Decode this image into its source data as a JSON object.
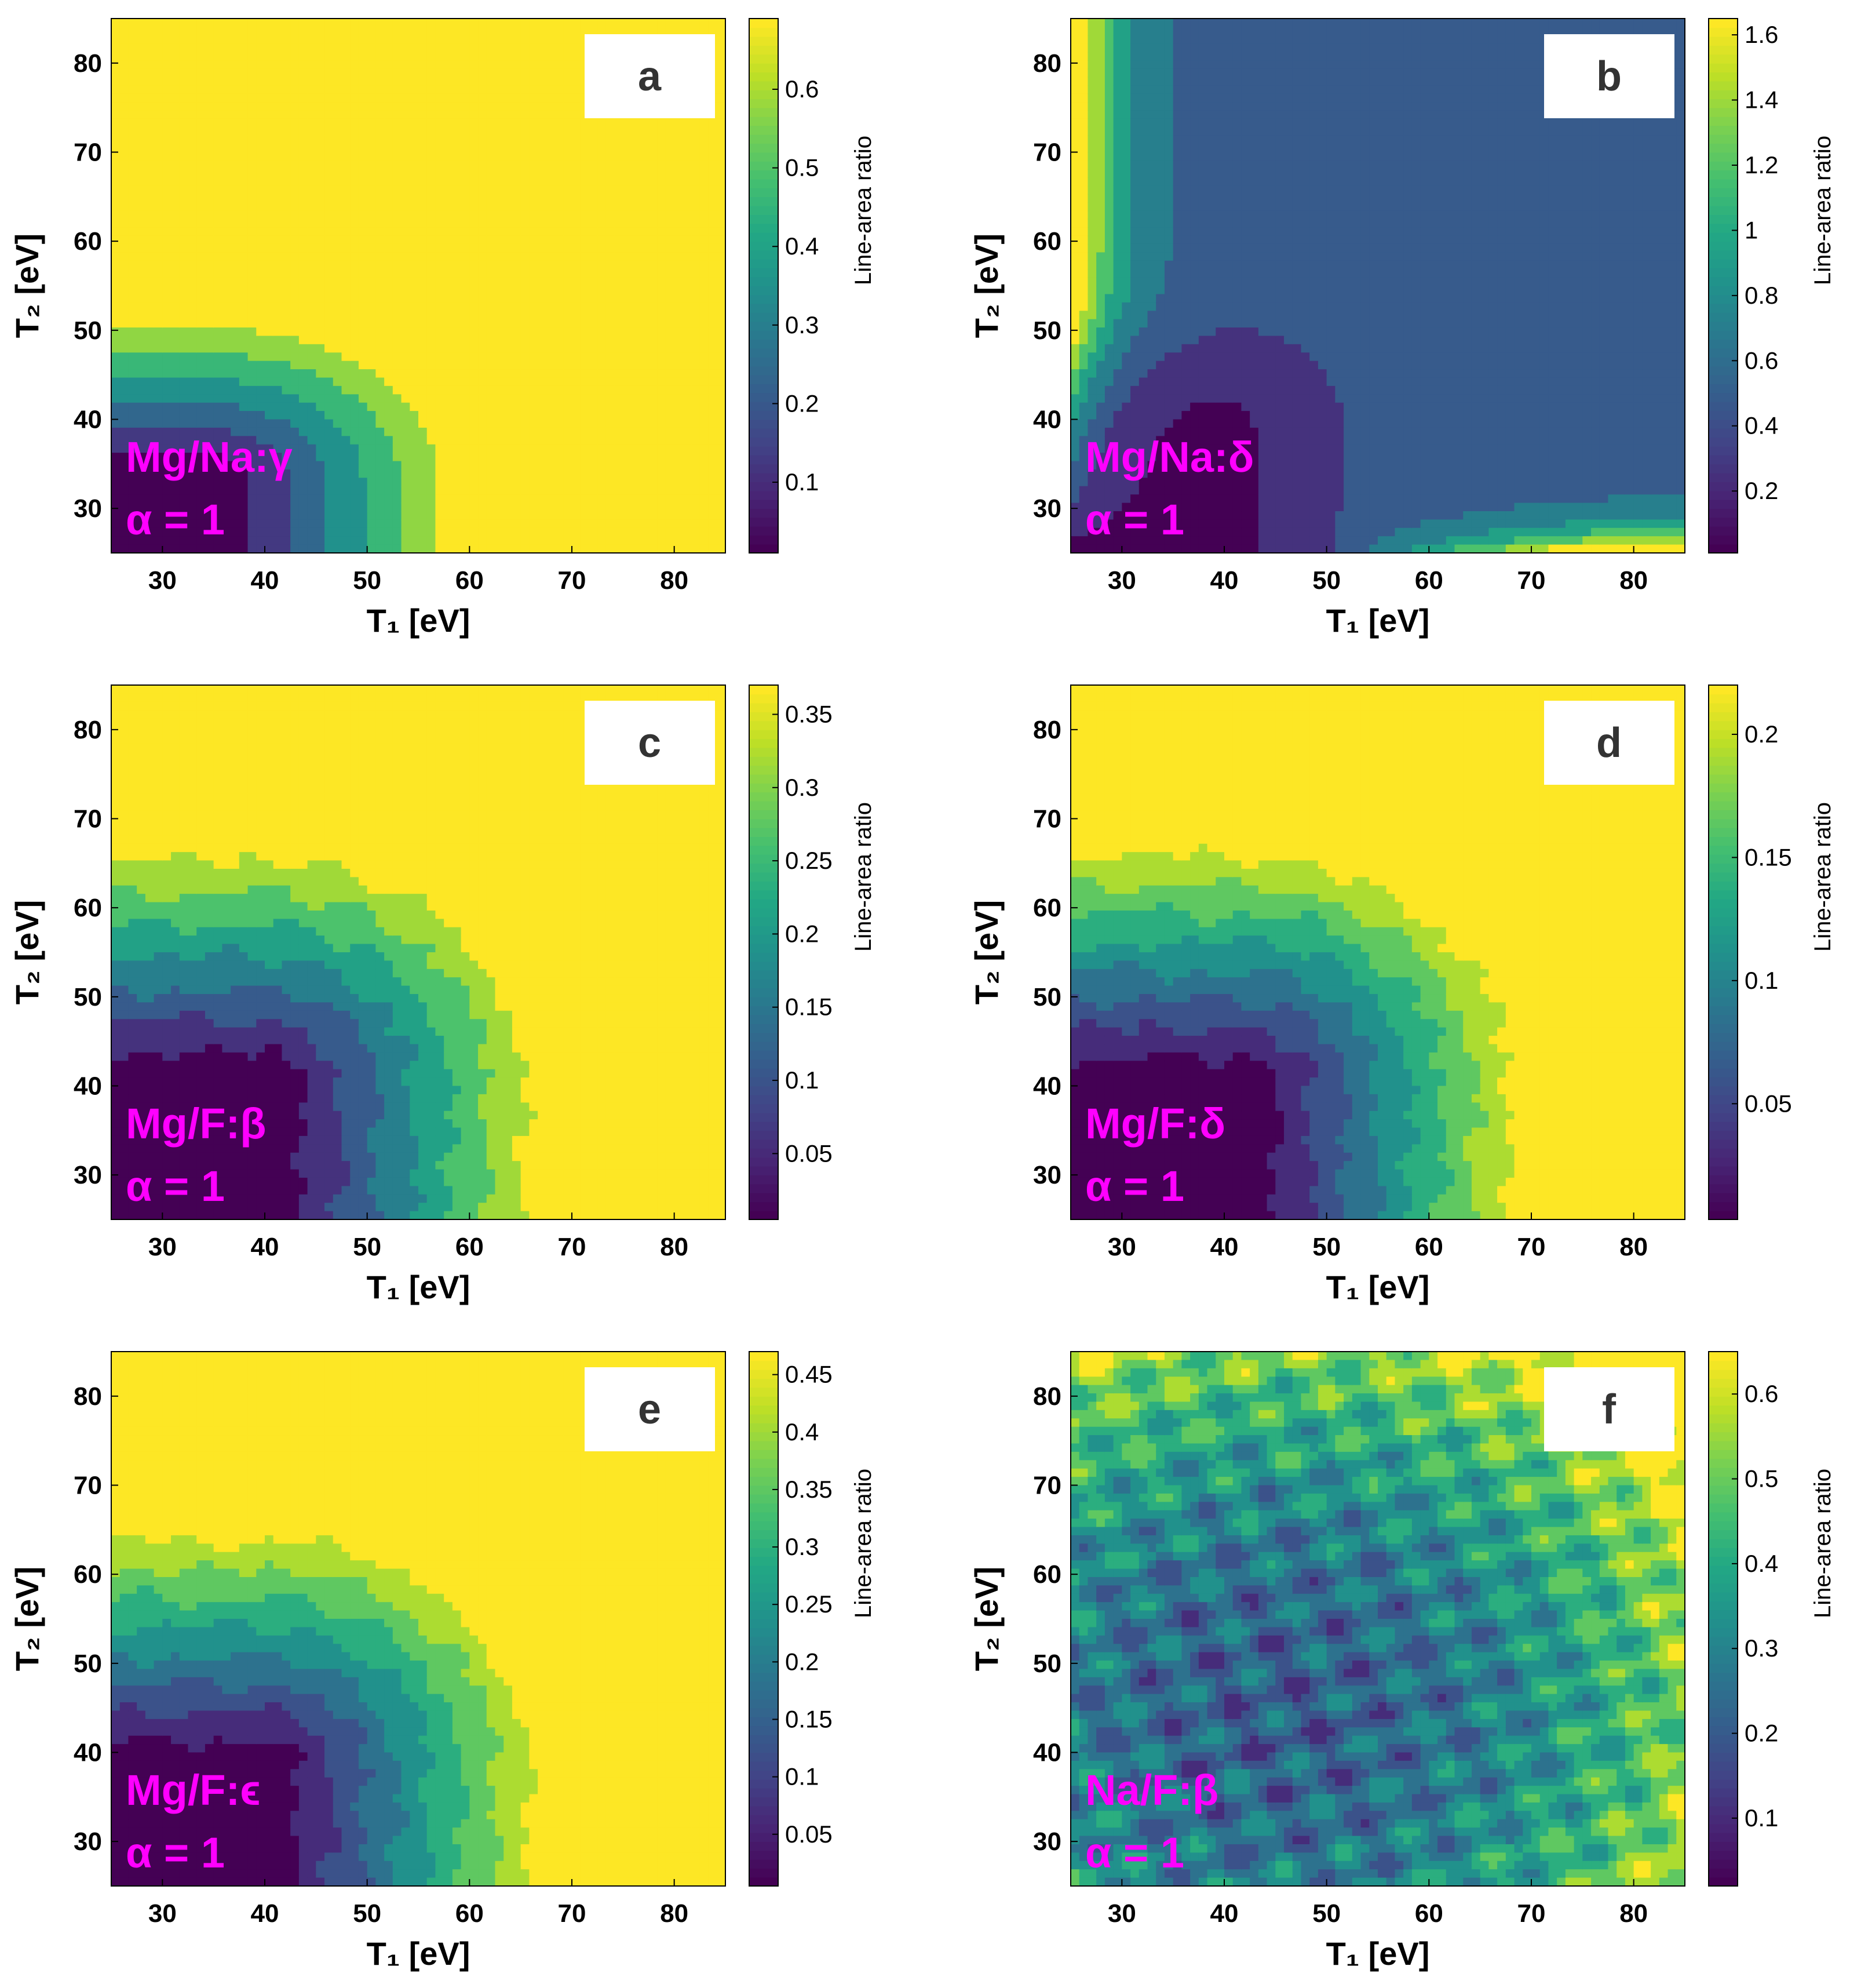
{
  "chart_data": [
    {
      "type": "heatmap",
      "panel_label": "a",
      "xlabel": "T₁ [eV]",
      "ylabel": "T₂ [eV]",
      "colorbar_label": "Line-area ratio",
      "xlim": [
        25,
        85
      ],
      "ylim": [
        25,
        85
      ],
      "x_ticks": [
        30,
        40,
        50,
        60,
        70,
        80
      ],
      "y_ticks": [
        30,
        40,
        50,
        60,
        70,
        80
      ],
      "colorbar_range": [
        0.01,
        0.69
      ],
      "colorbar_ticks": [
        "0.1",
        "0.2",
        "0.3",
        "0.4",
        "0.5",
        "0.6"
      ],
      "annotation_line1": "Mg/Na:γ",
      "annotation_line2": "α = 1",
      "model": "valley",
      "center": [
        35,
        33
      ],
      "scale": [
        23,
        18
      ],
      "noise": 0,
      "levels": 7
    },
    {
      "type": "heatmap",
      "panel_label": "b",
      "xlabel": "T₁ [eV]",
      "ylabel": "T₂ [eV]",
      "colorbar_label": "Line-area ratio",
      "xlim": [
        25,
        85
      ],
      "ylim": [
        25,
        85
      ],
      "x_ticks": [
        30,
        40,
        50,
        60,
        70,
        80
      ],
      "y_ticks": [
        30,
        40,
        50,
        60,
        70,
        80
      ],
      "colorbar_range": [
        0.01,
        1.65
      ],
      "colorbar_ticks": [
        "0.2",
        "0.4",
        "0.6",
        "0.8",
        "1",
        "1.2",
        "1.4",
        "1.6"
      ],
      "annotation_line1": "Mg/Na:δ",
      "annotation_line2": "α = 1",
      "model": "edges",
      "center": [
        38,
        38
      ],
      "scale": [
        16,
        16
      ],
      "noise": 0,
      "levels": 8
    },
    {
      "type": "heatmap",
      "panel_label": "c",
      "xlabel": "T₁ [eV]",
      "ylabel": "T₂ [eV]",
      "colorbar_label": "Line-area ratio",
      "xlim": [
        25,
        85
      ],
      "ylim": [
        25,
        85
      ],
      "x_ticks": [
        30,
        40,
        50,
        60,
        70,
        80
      ],
      "y_ticks": [
        30,
        40,
        50,
        60,
        70,
        80
      ],
      "colorbar_range": [
        0.005,
        0.37
      ],
      "colorbar_ticks": [
        "0.05",
        "0.1",
        "0.15",
        "0.2",
        "0.25",
        "0.3",
        "0.35"
      ],
      "annotation_line1": "Mg/F:β",
      "annotation_line2": "α = 1",
      "model": "valley",
      "center": [
        40,
        40
      ],
      "scale": [
        26,
        26
      ],
      "noise": 0.02,
      "levels": 8
    },
    {
      "type": "heatmap",
      "panel_label": "d",
      "xlabel": "T₁ [eV]",
      "ylabel": "T₂ [eV]",
      "colorbar_label": "Line-area ratio",
      "xlim": [
        25,
        85
      ],
      "ylim": [
        25,
        85
      ],
      "x_ticks": [
        30,
        40,
        50,
        60,
        70,
        80
      ],
      "y_ticks": [
        30,
        40,
        50,
        60,
        70,
        80
      ],
      "colorbar_range": [
        0.003,
        0.22
      ],
      "colorbar_ticks": [
        "0.05",
        "0.1",
        "0.15",
        "0.2"
      ],
      "annotation_line1": "Mg/F:δ",
      "annotation_line2": "α = 1",
      "model": "valley",
      "center": [
        42,
        40
      ],
      "scale": [
        26,
        26
      ],
      "noise": 0.02,
      "levels": 9
    },
    {
      "type": "heatmap",
      "panel_label": "e",
      "xlabel": "T₁ [eV]",
      "ylabel": "T₂ [eV]",
      "colorbar_label": "Line-area ratio",
      "xlim": [
        25,
        85
      ],
      "ylim": [
        25,
        85
      ],
      "x_ticks": [
        30,
        40,
        50,
        60,
        70,
        80
      ],
      "y_ticks": [
        30,
        40,
        50,
        60,
        70,
        80
      ],
      "colorbar_range": [
        0.005,
        0.47
      ],
      "colorbar_ticks": [
        "0.05",
        "0.1",
        "0.15",
        "0.2",
        "0.25",
        "0.3",
        "0.35",
        "0.4",
        "0.45"
      ],
      "annotation_line1": "Mg/F:ϵ",
      "annotation_line2": "α = 1",
      "model": "valley",
      "center": [
        40,
        38
      ],
      "scale": [
        26,
        26
      ],
      "noise": 0.02,
      "levels": 9
    },
    {
      "type": "heatmap",
      "panel_label": "f",
      "xlabel": "T₁ [eV]",
      "ylabel": "T₂ [eV]",
      "colorbar_label": "Line-area ratio",
      "xlim": [
        25,
        85
      ],
      "ylim": [
        25,
        85
      ],
      "x_ticks": [
        30,
        40,
        50,
        60,
        70,
        80
      ],
      "y_ticks": [
        30,
        40,
        50,
        60,
        70,
        80
      ],
      "colorbar_range": [
        0.02,
        0.65
      ],
      "colorbar_ticks": [
        "0.1",
        "0.2",
        "0.3",
        "0.4",
        "0.5",
        "0.6"
      ],
      "annotation_line1": "Na/F:β",
      "annotation_line2": "α = 1",
      "model": "noisy",
      "center": [
        45,
        45
      ],
      "scale": [
        40,
        40
      ],
      "noise": 0.09,
      "levels": 9
    }
  ]
}
